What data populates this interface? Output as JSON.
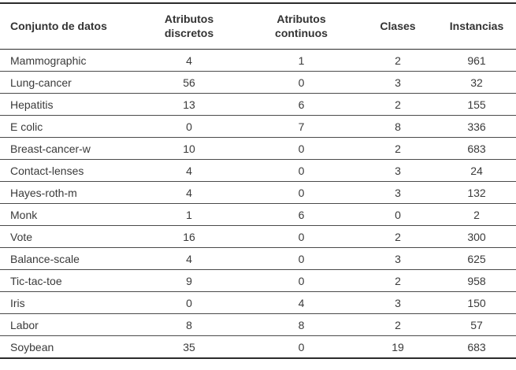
{
  "colors": {
    "background": "#ffffff",
    "text": "#3a3a3a",
    "header_text": "#333333",
    "outer_border": "#2b2b2b",
    "row_separator": "#4a4a4a"
  },
  "table": {
    "columns": [
      {
        "label": "Conjunto de datos",
        "align": "left"
      },
      {
        "label": "Atributos discretos",
        "align": "center"
      },
      {
        "label": "Atributos continuos",
        "align": "center"
      },
      {
        "label": "Clases",
        "align": "center"
      },
      {
        "label": "Instancias",
        "align": "center"
      }
    ],
    "rows": [
      {
        "name": "Mammographic",
        "discrete": "4",
        "continuous": "1",
        "classes": "2",
        "instances": "961"
      },
      {
        "name": "Lung-cancer",
        "discrete": "56",
        "continuous": "0",
        "classes": "3",
        "instances": "32"
      },
      {
        "name": "Hepatitis",
        "discrete": "13",
        "continuous": "6",
        "classes": "2",
        "instances": "155"
      },
      {
        "name": "E colic",
        "discrete": "0",
        "continuous": "7",
        "classes": "8",
        "instances": "336"
      },
      {
        "name": "Breast-cancer-w",
        "discrete": "10",
        "continuous": "0",
        "classes": "2",
        "instances": "683"
      },
      {
        "name": "Contact-lenses",
        "discrete": "4",
        "continuous": "0",
        "classes": "3",
        "instances": "24"
      },
      {
        "name": "Hayes-roth-m",
        "discrete": "4",
        "continuous": "0",
        "classes": "3",
        "instances": "132"
      },
      {
        "name": "Monk",
        "discrete": "1",
        "continuous": "6",
        "classes": "0",
        "instances": "2"
      },
      {
        "name": "Vote",
        "discrete": "16",
        "continuous": "0",
        "classes": "2",
        "instances": "300"
      },
      {
        "name": "Balance-scale",
        "discrete": "4",
        "continuous": "0",
        "classes": "3",
        "instances": "625"
      },
      {
        "name": "Tic-tac-toe",
        "discrete": "9",
        "continuous": "0",
        "classes": "2",
        "instances": "958"
      },
      {
        "name": "Iris",
        "discrete": "0",
        "continuous": "4",
        "classes": "3",
        "instances": "150"
      },
      {
        "name": "Labor",
        "discrete": "8",
        "continuous": "8",
        "classes": "2",
        "instances": "57"
      },
      {
        "name": "Soybean",
        "discrete": "35",
        "continuous": "0",
        "classes": "19",
        "instances": "683"
      }
    ]
  }
}
